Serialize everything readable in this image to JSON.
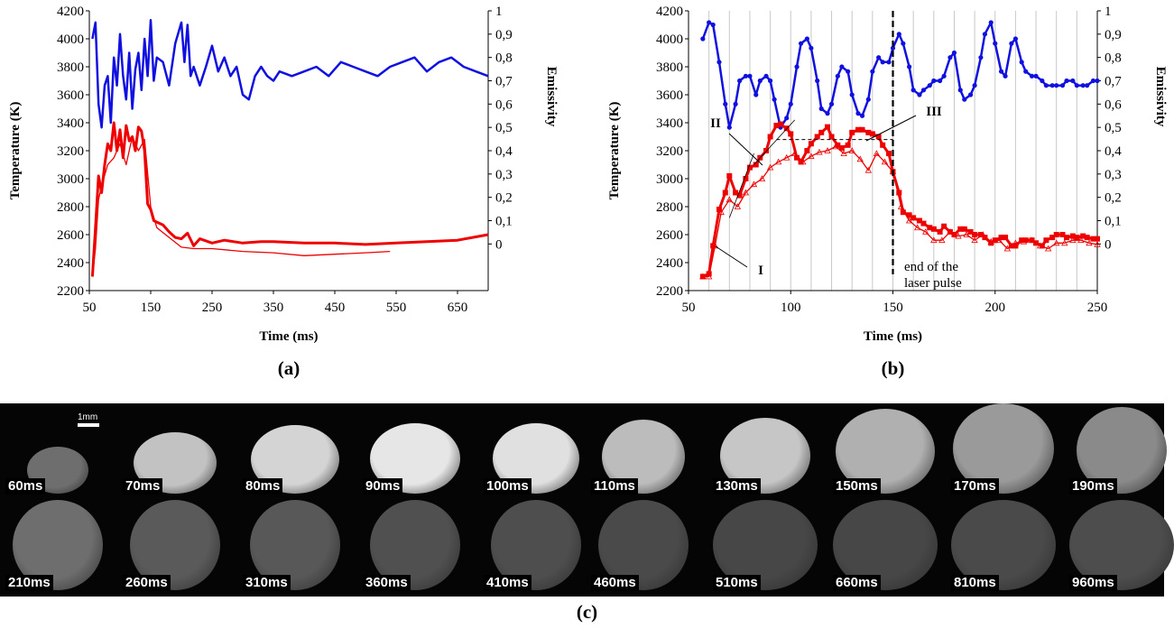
{
  "chart_data": [
    {
      "panel": "a",
      "type": "line",
      "caption": "(a)",
      "xlabel": "Time (ms)",
      "ylabel": "Temperature (K)",
      "y2label": "Emissivity",
      "xlim": [
        50,
        700
      ],
      "ylim": [
        2200,
        4200
      ],
      "y2lim": [
        -0.2,
        1.0
      ],
      "xticks": [
        "50",
        "150",
        "250",
        "350",
        "450",
        "550",
        "650"
      ],
      "yticks": [
        "2200",
        "2400",
        "2600",
        "2800",
        "3000",
        "3200",
        "3400",
        "3600",
        "3800",
        "4000",
        "4200"
      ],
      "y2ticks": [
        "0",
        "0,1",
        "0,2",
        "0,3",
        "0,4",
        "0,5",
        "0,6",
        "0,7",
        "0,8",
        "0,9",
        "1"
      ],
      "grid": false,
      "series": [
        {
          "color": "#1010e0",
          "axis": "right",
          "x": [
            55,
            60,
            65,
            70,
            75,
            80,
            85,
            90,
            95,
            100,
            105,
            110,
            115,
            120,
            125,
            130,
            135,
            140,
            145,
            150,
            155,
            160,
            170,
            180,
            190,
            200,
            205,
            210,
            215,
            220,
            230,
            240,
            250,
            260,
            270,
            280,
            290,
            300,
            310,
            320,
            330,
            340,
            350,
            360,
            380,
            400,
            420,
            440,
            460,
            480,
            500,
            520,
            540,
            560,
            580,
            600,
            620,
            640,
            660,
            680,
            700
          ],
          "y": [
            0.88,
            0.95,
            0.6,
            0.5,
            0.68,
            0.72,
            0.52,
            0.8,
            0.68,
            0.9,
            0.72,
            0.62,
            0.82,
            0.58,
            0.75,
            0.82,
            0.66,
            0.88,
            0.72,
            0.96,
            0.7,
            0.8,
            0.78,
            0.68,
            0.86,
            0.95,
            0.78,
            0.94,
            0.72,
            0.76,
            0.68,
            0.76,
            0.85,
            0.74,
            0.8,
            0.72,
            0.76,
            0.64,
            0.62,
            0.72,
            0.76,
            0.72,
            0.7,
            0.74,
            0.72,
            0.74,
            0.76,
            0.72,
            0.78,
            0.76,
            0.74,
            0.72,
            0.76,
            0.78,
            0.8,
            0.74,
            0.78,
            0.8,
            0.76,
            0.74,
            0.72
          ]
        },
        {
          "color": "#ee0000",
          "width": 3,
          "x": [
            55,
            60,
            65,
            70,
            75,
            80,
            85,
            90,
            95,
            100,
            105,
            110,
            115,
            120,
            125,
            130,
            135,
            140,
            145,
            150,
            155,
            160,
            170,
            180,
            190,
            200,
            210,
            220,
            230,
            250,
            270,
            300,
            330,
            350,
            400,
            450,
            500,
            550,
            600,
            650,
            700
          ],
          "y": [
            2300,
            2650,
            3020,
            2900,
            3100,
            3250,
            3200,
            3400,
            3200,
            3350,
            3150,
            3380,
            3270,
            3300,
            3200,
            3370,
            3340,
            3200,
            2820,
            2780,
            2700,
            2690,
            2670,
            2620,
            2580,
            2570,
            2610,
            2520,
            2570,
            2540,
            2560,
            2540,
            2550,
            2550,
            2540,
            2540,
            2530,
            2540,
            2550,
            2560,
            2600
          ]
        },
        {
          "color": "#ee0000",
          "width": 1.3,
          "x": [
            55,
            60,
            65,
            70,
            80,
            90,
            100,
            110,
            120,
            130,
            140,
            150,
            160,
            180,
            200,
            220,
            250,
            300,
            350,
            400,
            450,
            500,
            540
          ],
          "y": [
            2300,
            2500,
            2850,
            2950,
            3100,
            3150,
            3250,
            3100,
            3300,
            3200,
            3280,
            2800,
            2650,
            2580,
            2510,
            2500,
            2500,
            2480,
            2470,
            2450,
            2460,
            2470,
            2480
          ]
        }
      ]
    },
    {
      "panel": "b",
      "type": "line",
      "caption": "(b)",
      "xlabel": "Time (ms)",
      "ylabel": "Temperature (K)",
      "y2label": "Emissivity",
      "xlim": [
        50,
        250
      ],
      "ylim": [
        2200,
        4200
      ],
      "y2lim": [
        -0.2,
        1.0
      ],
      "xticks": [
        "50",
        "100",
        "150",
        "200",
        "250"
      ],
      "yticks": [
        "2200",
        "2400",
        "2600",
        "2800",
        "3000",
        "3200",
        "3400",
        "3600",
        "3800",
        "4000",
        "4200"
      ],
      "y2ticks": [
        "0",
        "0,1",
        "0,2",
        "0,3",
        "0,4",
        "0,5",
        "0,6",
        "0,7",
        "0,8",
        "0,9",
        "1"
      ],
      "grid": "vertical lines every 10 ms from 60 to 240",
      "annotations": [
        "I",
        "II",
        "III",
        "end of the laser pulse"
      ],
      "laser_pulse_end_x": 150,
      "plateau_y": 3280,
      "series": [
        {
          "color": "#1010e0",
          "axis": "right",
          "marker": "circle",
          "x": [
            57,
            60,
            62,
            65,
            68,
            70,
            73,
            75,
            78,
            80,
            83,
            85,
            88,
            90,
            92,
            95,
            98,
            100,
            103,
            105,
            108,
            110,
            113,
            115,
            118,
            120,
            123,
            125,
            128,
            130,
            133,
            135,
            138,
            140,
            143,
            145,
            148,
            150,
            153,
            155,
            158,
            160,
            163,
            165,
            168,
            170,
            173,
            175,
            178,
            180,
            183,
            185,
            188,
            190,
            193,
            195,
            198,
            200,
            203,
            205,
            208,
            210,
            213,
            215,
            218,
            220,
            223,
            225,
            228,
            230,
            233,
            235,
            238,
            240,
            243,
            245,
            248,
            250
          ],
          "y": [
            0.88,
            0.95,
            0.94,
            0.78,
            0.6,
            0.5,
            0.6,
            0.7,
            0.72,
            0.72,
            0.64,
            0.7,
            0.72,
            0.7,
            0.62,
            0.5,
            0.54,
            0.6,
            0.76,
            0.86,
            0.88,
            0.84,
            0.7,
            0.58,
            0.56,
            0.6,
            0.72,
            0.76,
            0.74,
            0.64,
            0.56,
            0.55,
            0.62,
            0.74,
            0.8,
            0.78,
            0.78,
            0.84,
            0.9,
            0.86,
            0.76,
            0.66,
            0.64,
            0.66,
            0.68,
            0.7,
            0.7,
            0.72,
            0.8,
            0.82,
            0.66,
            0.62,
            0.64,
            0.68,
            0.8,
            0.9,
            0.95,
            0.86,
            0.74,
            0.72,
            0.86,
            0.88,
            0.78,
            0.74,
            0.72,
            0.72,
            0.7,
            0.68,
            0.68,
            0.68,
            0.68,
            0.7,
            0.7,
            0.68,
            0.68,
            0.68,
            0.7,
            0.7
          ]
        },
        {
          "color": "#ee0000",
          "width": 3,
          "marker": "square",
          "x": [
            57,
            60,
            62,
            65,
            68,
            70,
            73,
            75,
            78,
            80,
            83,
            85,
            88,
            90,
            93,
            95,
            98,
            100,
            103,
            105,
            108,
            110,
            113,
            115,
            118,
            120,
            123,
            125,
            128,
            130,
            133,
            135,
            138,
            140,
            143,
            145,
            148,
            150,
            153,
            155,
            158,
            160,
            163,
            165,
            168,
            170,
            173,
            175,
            178,
            180,
            183,
            185,
            188,
            190,
            193,
            195,
            198,
            200,
            203,
            205,
            208,
            210,
            213,
            215,
            218,
            220,
            223,
            225,
            228,
            230,
            233,
            235,
            238,
            240,
            243,
            245,
            248,
            250
          ],
          "y": [
            2300,
            2320,
            2520,
            2780,
            2900,
            3020,
            2900,
            2880,
            3000,
            3080,
            3100,
            3150,
            3200,
            3300,
            3380,
            3390,
            3360,
            3320,
            3150,
            3120,
            3200,
            3250,
            3300,
            3330,
            3370,
            3300,
            3240,
            3220,
            3240,
            3330,
            3350,
            3350,
            3330,
            3320,
            3300,
            3240,
            3180,
            3050,
            2900,
            2760,
            2740,
            2720,
            2700,
            2680,
            2650,
            2640,
            2620,
            2660,
            2620,
            2600,
            2640,
            2640,
            2620,
            2600,
            2600,
            2580,
            2540,
            2560,
            2580,
            2580,
            2520,
            2520,
            2560,
            2560,
            2560,
            2540,
            2520,
            2560,
            2580,
            2600,
            2600,
            2580,
            2590,
            2580,
            2590,
            2580,
            2570,
            2570
          ]
        },
        {
          "color": "#ee0000",
          "width": 1.3,
          "marker": "triangle",
          "x": [
            57,
            60,
            63,
            66,
            70,
            74,
            78,
            82,
            86,
            90,
            94,
            98,
            102,
            106,
            110,
            114,
            118,
            122,
            126,
            130,
            134,
            138,
            142,
            146,
            150,
            154,
            158,
            162,
            166,
            170,
            174,
            178,
            182,
            186,
            190,
            194,
            198,
            202,
            206,
            210,
            214,
            218,
            222,
            226,
            230,
            234,
            238,
            242,
            246,
            250
          ],
          "y": [
            2300,
            2300,
            2520,
            2760,
            2850,
            2800,
            2900,
            2960,
            3000,
            3080,
            3120,
            3150,
            3180,
            3120,
            3160,
            3190,
            3200,
            3230,
            3180,
            3200,
            3140,
            3060,
            3180,
            3120,
            3050,
            2800,
            2700,
            2650,
            2620,
            2560,
            2560,
            2620,
            2590,
            2600,
            2560,
            2600,
            2550,
            2560,
            2500,
            2540,
            2550,
            2560,
            2520,
            2500,
            2540,
            2540,
            2560,
            2560,
            2540,
            2530
          ]
        }
      ]
    }
  ],
  "panel_c": {
    "caption": "(c)",
    "scale_label": "1mm",
    "frames_row1": [
      {
        "label": "60ms",
        "shade": "#6e6e6e"
      },
      {
        "label": "70ms",
        "shade": "#c2c2c2"
      },
      {
        "label": "80ms",
        "shade": "#d4d4d4"
      },
      {
        "label": "90ms",
        "shade": "#e6e6e6"
      },
      {
        "label": "100ms",
        "shade": "#e0e0e0"
      },
      {
        "label": "110ms",
        "shade": "#bcbcbc"
      },
      {
        "label": "130ms",
        "shade": "#c6c6c6"
      },
      {
        "label": "150ms",
        "shade": "#b0b0b0"
      },
      {
        "label": "170ms",
        "shade": "#9a9a9a"
      },
      {
        "label": "190ms",
        "shade": "#8a8a8a"
      }
    ],
    "frames_row2": [
      {
        "label": "210ms",
        "shade": "#6e6e6e"
      },
      {
        "label": "260ms",
        "shade": "#5a5a5a"
      },
      {
        "label": "310ms",
        "shade": "#585858"
      },
      {
        "label": "360ms",
        "shade": "#505050"
      },
      {
        "label": "410ms",
        "shade": "#4e4e4e"
      },
      {
        "label": "460ms",
        "shade": "#4a4a4a"
      },
      {
        "label": "510ms",
        "shade": "#474747"
      },
      {
        "label": "660ms",
        "shade": "#474747"
      },
      {
        "label": "810ms",
        "shade": "#4a4a4a"
      },
      {
        "label": "960ms",
        "shade": "#4d4d4d"
      }
    ]
  }
}
